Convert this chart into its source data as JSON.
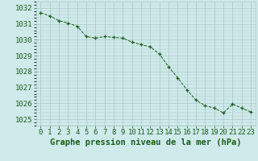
{
  "x": [
    0,
    1,
    2,
    3,
    4,
    5,
    6,
    7,
    8,
    9,
    10,
    11,
    12,
    13,
    14,
    15,
    16,
    17,
    18,
    19,
    20,
    21,
    22,
    23
  ],
  "y": [
    1031.7,
    1031.5,
    1031.2,
    1031.05,
    1030.85,
    1030.2,
    1030.1,
    1030.2,
    1030.15,
    1030.1,
    1029.85,
    1029.7,
    1029.55,
    1029.1,
    1028.3,
    1027.6,
    1026.85,
    1026.2,
    1025.85,
    1025.7,
    1025.4,
    1025.95,
    1025.7,
    1025.45
  ],
  "line_color": "#1a5c1a",
  "marker_color": "#1a5c1a",
  "bg_color": "#ceeaea",
  "grid_color": "#a8c8c8",
  "ylabel_ticks": [
    1025,
    1026,
    1027,
    1028,
    1029,
    1030,
    1031,
    1032
  ],
  "xlabel_ticks": [
    0,
    1,
    2,
    3,
    4,
    5,
    6,
    7,
    8,
    9,
    10,
    11,
    12,
    13,
    14,
    15,
    16,
    17,
    18,
    19,
    20,
    21,
    22,
    23
  ],
  "xlabel": "Graphe pression niveau de la mer (hPa)",
  "ylim": [
    1024.6,
    1032.4
  ],
  "xlim": [
    -0.5,
    23.5
  ],
  "label_color": "#1a5c1a",
  "tick_fontsize": 6.5,
  "xlabel_fontsize": 7.5
}
